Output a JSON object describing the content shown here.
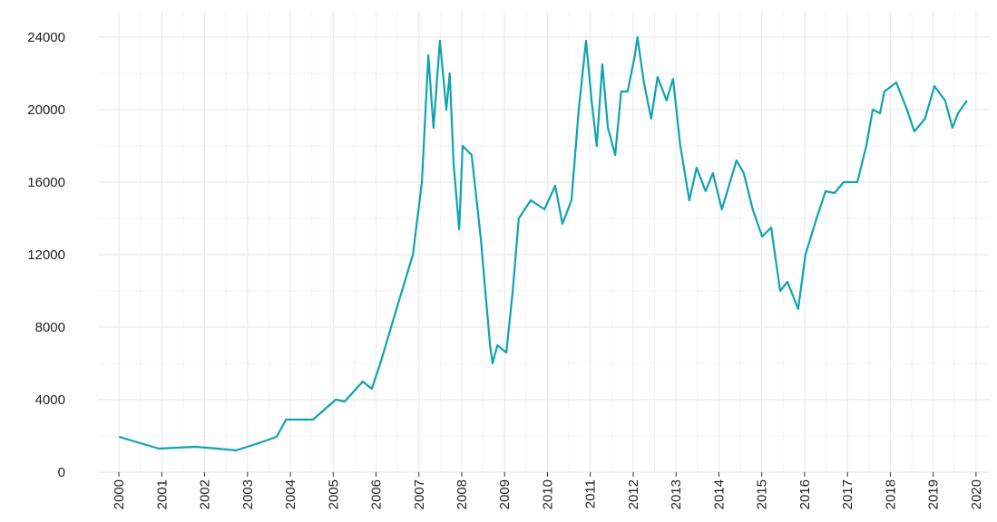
{
  "chart_data": {
    "type": "line",
    "x": [
      2000,
      2000.93,
      2001.78,
      2002.3,
      2002.73,
      2003.26,
      2003.68,
      2003.9,
      2004.53,
      2005.06,
      2005.27,
      2005.69,
      2005.9,
      2006.1,
      2006.54,
      2006.86,
      2007.07,
      2007.22,
      2007.34,
      2007.49,
      2007.64,
      2007.72,
      2007.81,
      2007.94,
      2008.02,
      2008.23,
      2008.44,
      2008.66,
      2008.72,
      2008.83,
      2009.04,
      2009.19,
      2009.33,
      2009.61,
      2009.93,
      2010.18,
      2010.35,
      2010.56,
      2010.73,
      2010.9,
      2011.03,
      2011.15,
      2011.28,
      2011.41,
      2011.58,
      2011.72,
      2011.87,
      2012.04,
      2012.1,
      2012.25,
      2012.42,
      2012.57,
      2012.78,
      2012.93,
      2013.1,
      2013.31,
      2013.48,
      2013.69,
      2013.86,
      2014.07,
      2014.26,
      2014.41,
      2014.58,
      2014.79,
      2015.01,
      2015.22,
      2015.43,
      2015.6,
      2015.85,
      2016.02,
      2016.28,
      2016.49,
      2016.7,
      2016.91,
      2017.23,
      2017.44,
      2017.59,
      2017.76,
      2017.86,
      2018.14,
      2018.39,
      2018.56,
      2018.81,
      2019.03,
      2019.28,
      2019.45,
      2019.58,
      2019.79
    ],
    "series": [
      {
        "name": "value",
        "color": "#0fa3b1",
        "values": [
          1950,
          1300,
          1400,
          1300,
          1200,
          1600,
          1950,
          2900,
          2900,
          4000,
          3900,
          5000,
          4600,
          6000,
          9500,
          12000,
          16000,
          23000,
          19000,
          23800,
          20000,
          22000,
          17000,
          13400,
          18000,
          17500,
          13000,
          7000,
          6000,
          7000,
          6600,
          10000,
          14000,
          15000,
          14500,
          15800,
          13700,
          15000,
          20000,
          23800,
          20500,
          18000,
          22500,
          19000,
          17500,
          21000,
          21000,
          23000,
          24000,
          21500,
          19500,
          21800,
          20500,
          21700,
          18000,
          15000,
          16800,
          15500,
          16500,
          14500,
          16000,
          17200,
          16500,
          14500,
          13000,
          13500,
          10000,
          10500,
          9000,
          12000,
          14000,
          15500,
          15400,
          16000,
          16000,
          18000,
          20000,
          19800,
          21000,
          21500,
          20000,
          18800,
          19500,
          21300,
          20500,
          19000,
          19800,
          20500
        ]
      }
    ],
    "xlim": [
      1999.13,
      2020.49
    ],
    "xticks": [
      2000,
      2001,
      2002,
      2003,
      2004,
      2005,
      2006,
      2007,
      2008,
      2009,
      2010,
      2011,
      2012,
      2013,
      2014,
      2015,
      2016,
      2017,
      2018,
      2019,
      2020
    ],
    "ylim": [
      0,
      25000
    ],
    "yticks": [
      0,
      4000,
      8000,
      12000,
      16000,
      20000,
      24000
    ],
    "grid": true
  }
}
